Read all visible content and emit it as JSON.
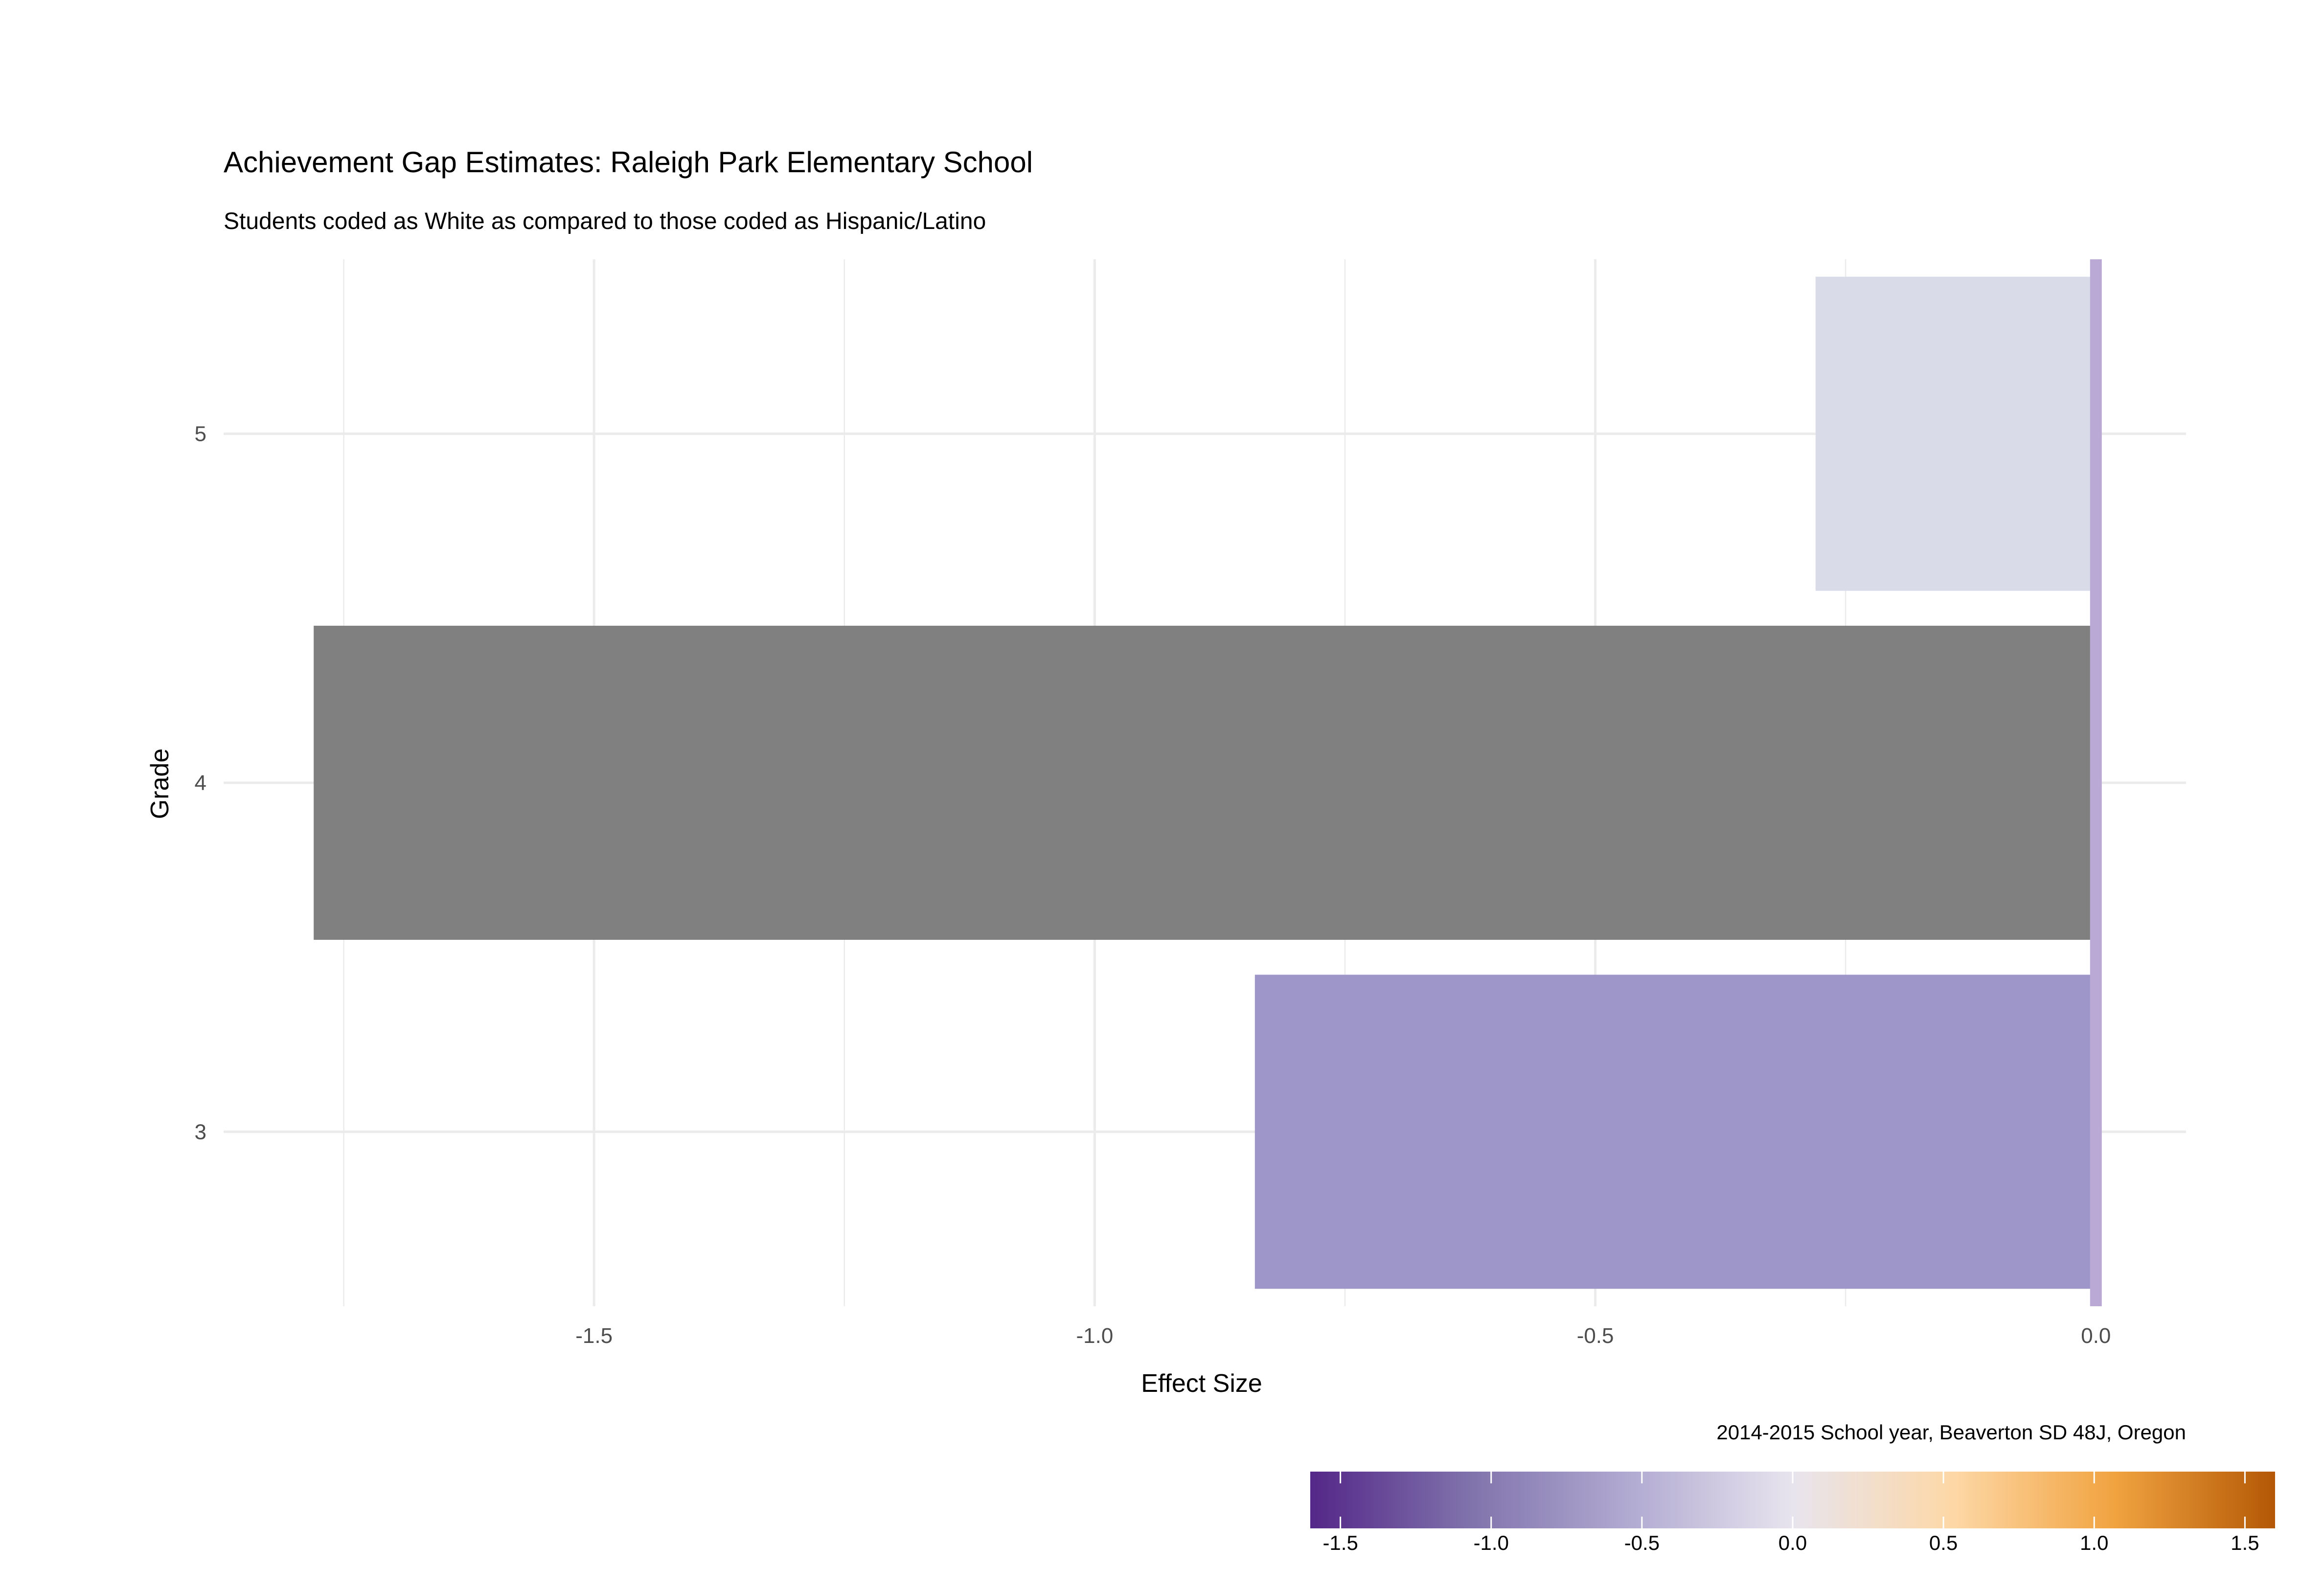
{
  "chart_data": {
    "type": "bar",
    "orientation": "horizontal",
    "title": "Achievement Gap Estimates: Raleigh Park Elementary School",
    "subtitle": "Students coded as White as compared to those coded as Hispanic/Latino",
    "xlabel": "Effect Size",
    "ylabel": "Grade",
    "caption": "2014-2015 School year, Beaverton SD 48J, Oregon",
    "categories": [
      "3",
      "4",
      "5"
    ],
    "values": [
      -0.84,
      -1.78,
      -0.28
    ],
    "bar_colors": [
      "#9e95c8",
      "#808080",
      "#d9dbe9"
    ],
    "xlim": [
      -1.87,
      0.09
    ],
    "x_ticks": [
      -1.5,
      -1.0,
      -0.5,
      0.0
    ],
    "x_tick_labels": [
      "-1.5",
      "-1.0",
      "-0.5",
      "0.0"
    ],
    "reference_line": {
      "x": 0.0,
      "color": "#b9a9d4"
    },
    "grid": true,
    "colorbar": {
      "range": [
        -1.6,
        1.6
      ],
      "ticks": [
        -1.5,
        -1.0,
        -0.5,
        0.0,
        0.5,
        1.0,
        1.5
      ],
      "tick_labels": [
        "-1.5",
        "-1.0",
        "-0.5",
        "0.0",
        "0.5",
        "1.0",
        "1.5"
      ],
      "colors": [
        "#542788",
        "#8073ac",
        "#b2abd2",
        "#e8e4ee",
        "#fdd8a6",
        "#f1a340",
        "#b35806"
      ],
      "placement": "bottom-right"
    }
  }
}
